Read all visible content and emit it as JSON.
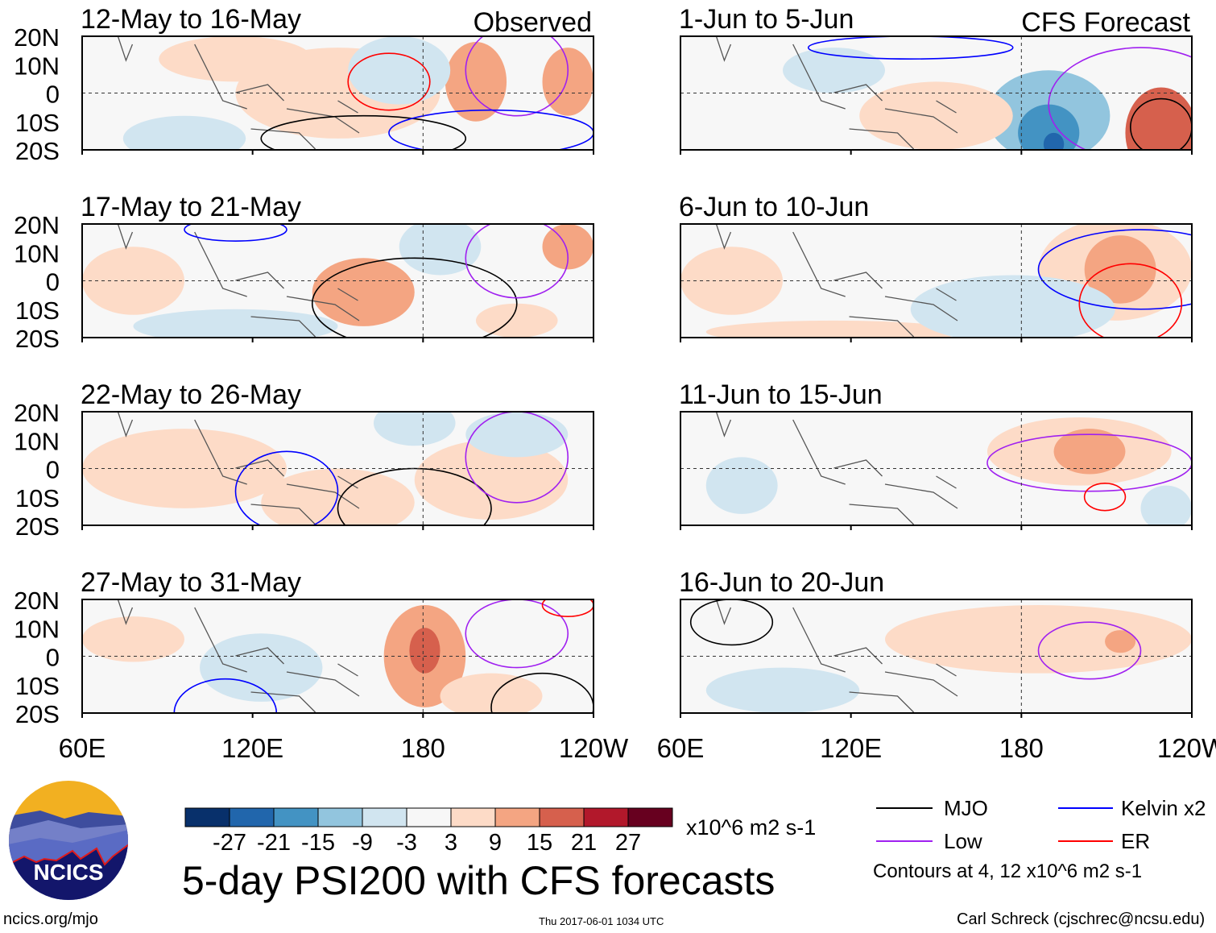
{
  "chart_data": {
    "type": "heatmap",
    "title": "5-day PSI200 with CFS forecasts",
    "units": "x10^6 m2 s-1",
    "x_ticks": [
      "60E",
      "120E",
      "180",
      "120W"
    ],
    "y_ticks": [
      "20N",
      "10N",
      "0",
      "10S",
      "20S"
    ],
    "xlim": [
      "60E",
      "120W"
    ],
    "ylim": [
      "20S",
      "20N"
    ],
    "observed_label": "Observed",
    "forecast_label": "CFS Forecast",
    "panels": [
      {
        "title": "12-May to 16-May",
        "group": "observed"
      },
      {
        "title": "17-May to 21-May",
        "group": "observed"
      },
      {
        "title": "22-May to 26-May",
        "group": "observed"
      },
      {
        "title": "27-May to 31-May",
        "group": "observed"
      },
      {
        "title": "1-Jun to 5-Jun",
        "group": "forecast"
      },
      {
        "title": "6-Jun to 10-Jun",
        "group": "forecast"
      },
      {
        "title": "11-Jun to 15-Jun",
        "group": "forecast"
      },
      {
        "title": "16-Jun to 20-Jun",
        "group": "forecast"
      }
    ],
    "colorbar": {
      "levels": [
        "-27",
        "-21",
        "-15",
        "-9",
        "-3",
        "3",
        "9",
        "15",
        "21",
        "27"
      ],
      "colors": [
        "#08306b",
        "#2166ac",
        "#4393c3",
        "#92c5de",
        "#d1e5f0",
        "#f7f7f7",
        "#fddbc7",
        "#f4a582",
        "#d6604d",
        "#b2182b",
        "#67001f"
      ]
    },
    "legend": {
      "position": "bottom-right",
      "entries": [
        {
          "label": "MJO",
          "color": "#000000"
        },
        {
          "label": "Kelvin x2",
          "color": "#0000ff"
        },
        {
          "label": "Low",
          "color": "#a020f0"
        },
        {
          "label": "ER",
          "color": "#ff0000"
        }
      ],
      "note": "Contours at 4, 12 x10^6 m2 s-1"
    }
  },
  "footer": {
    "logo_text": "NCICS",
    "url": "ncics.org/mjo",
    "timestamp": "Thu 2017-06-01 1034 UTC",
    "author": "Carl Schreck (cjschrec@ncsu.edu)"
  }
}
